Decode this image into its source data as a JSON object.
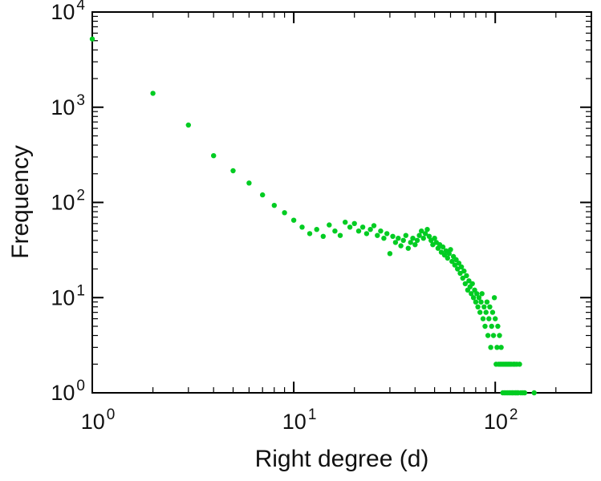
{
  "chart_data": {
    "type": "scatter",
    "title": "",
    "xlabel": "Right degree (d)",
    "ylabel": "Frequency",
    "x_scale": "log",
    "y_scale": "log",
    "xlim": [
      1,
      300
    ],
    "ylim": [
      1,
      10000
    ],
    "x_major_tick_exponents": [
      0,
      1,
      2
    ],
    "y_major_tick_exponents": [
      0,
      1,
      2,
      3,
      4
    ],
    "tick_label_base": "10",
    "grid": false,
    "legend": false,
    "marker_color": "#00cc22",
    "axis_color": "#000000",
    "text_color": "#111111",
    "points": [
      [
        1,
        5200
      ],
      [
        2,
        1400
      ],
      [
        3,
        650
      ],
      [
        4,
        310
      ],
      [
        5,
        215
      ],
      [
        6,
        160
      ],
      [
        7,
        120
      ],
      [
        8,
        93
      ],
      [
        9,
        78
      ],
      [
        10,
        65
      ],
      [
        11,
        55
      ],
      [
        12,
        47
      ],
      [
        13,
        52
      ],
      [
        14,
        44
      ],
      [
        15,
        58
      ],
      [
        16,
        50
      ],
      [
        17,
        45
      ],
      [
        18,
        62
      ],
      [
        19,
        55
      ],
      [
        20,
        60
      ],
      [
        21,
        50
      ],
      [
        22,
        55
      ],
      [
        23,
        47
      ],
      [
        24,
        52
      ],
      [
        25,
        57
      ],
      [
        26,
        45
      ],
      [
        27,
        50
      ],
      [
        28,
        42
      ],
      [
        29,
        47
      ],
      [
        30,
        29
      ],
      [
        31,
        44
      ],
      [
        32,
        38
      ],
      [
        33,
        42
      ],
      [
        34,
        35
      ],
      [
        35,
        40
      ],
      [
        36,
        45
      ],
      [
        37,
        33
      ],
      [
        38,
        38
      ],
      [
        39,
        42
      ],
      [
        40,
        36
      ],
      [
        41,
        40
      ],
      [
        42,
        45
      ],
      [
        43,
        50
      ],
      [
        44,
        42
      ],
      [
        45,
        47
      ],
      [
        46,
        52
      ],
      [
        47,
        44
      ],
      [
        48,
        40
      ],
      [
        49,
        36
      ],
      [
        50,
        42
      ],
      [
        51,
        38
      ],
      [
        52,
        33
      ],
      [
        53,
        36
      ],
      [
        54,
        30
      ],
      [
        55,
        34
      ],
      [
        56,
        28
      ],
      [
        57,
        31
      ],
      [
        58,
        26
      ],
      [
        59,
        29
      ],
      [
        60,
        32
      ],
      [
        61,
        24
      ],
      [
        62,
        27
      ],
      [
        63,
        22
      ],
      [
        64,
        25
      ],
      [
        65,
        20
      ],
      [
        66,
        23
      ],
      [
        67,
        18
      ],
      [
        68,
        21
      ],
      [
        69,
        16
      ],
      [
        70,
        19
      ],
      [
        71,
        14
      ],
      [
        72,
        17
      ],
      [
        73,
        12
      ],
      [
        74,
        15
      ],
      [
        75,
        13
      ],
      [
        76,
        11
      ],
      [
        77,
        14
      ],
      [
        78,
        10
      ],
      [
        79,
        12
      ],
      [
        80,
        9
      ],
      [
        81,
        11
      ],
      [
        82,
        8
      ],
      [
        83,
        10
      ],
      [
        84,
        7
      ],
      [
        85,
        9
      ],
      [
        86,
        11
      ],
      [
        87,
        6
      ],
      [
        88,
        8
      ],
      [
        89,
        5
      ],
      [
        90,
        7
      ],
      [
        91,
        9
      ],
      [
        92,
        4
      ],
      [
        93,
        6
      ],
      [
        94,
        8
      ],
      [
        95,
        3
      ],
      [
        96,
        5
      ],
      [
        97,
        7
      ],
      [
        98,
        4
      ],
      [
        99,
        10
      ],
      [
        100,
        6
      ],
      [
        101,
        2
      ],
      [
        102,
        3
      ],
      [
        103,
        5
      ],
      [
        104,
        2
      ],
      [
        105,
        4
      ],
      [
        106,
        2
      ],
      [
        107,
        3
      ],
      [
        108,
        2
      ],
      [
        109,
        1
      ],
      [
        110,
        2
      ],
      [
        111,
        1
      ],
      [
        112,
        2
      ],
      [
        113,
        1
      ],
      [
        114,
        2
      ],
      [
        115,
        1
      ],
      [
        116,
        2
      ],
      [
        117,
        1
      ],
      [
        118,
        2
      ],
      [
        119,
        1
      ],
      [
        120,
        2
      ],
      [
        121,
        1
      ],
      [
        122,
        1
      ],
      [
        123,
        2
      ],
      [
        124,
        1
      ],
      [
        125,
        2
      ],
      [
        126,
        1
      ],
      [
        127,
        1
      ],
      [
        128,
        2
      ],
      [
        129,
        1
      ],
      [
        130,
        1
      ],
      [
        132,
        2
      ],
      [
        134,
        1
      ],
      [
        137,
        1
      ],
      [
        140,
        1
      ],
      [
        156,
        1
      ]
    ]
  }
}
